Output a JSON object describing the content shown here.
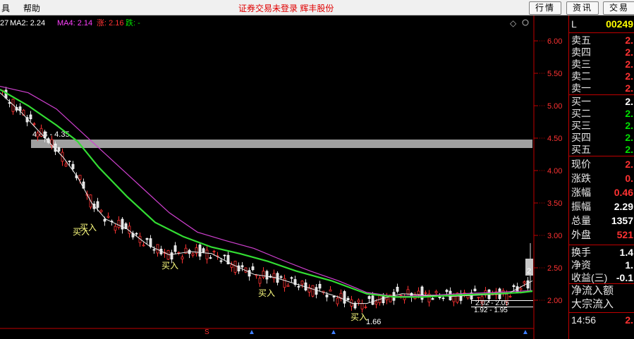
{
  "menu": {
    "left_item": "具",
    "help": "帮助",
    "status": "证券交易未登录  辉丰股份",
    "buttons": [
      "行情",
      "资讯",
      "交易"
    ]
  },
  "chart": {
    "ma_labels": [
      {
        "text": "27",
        "color": "#ffffff"
      },
      {
        "text": "MA2: 2.24",
        "color": "#ffffff"
      },
      {
        "text": "MA4: 2.14",
        "color": "#ff40ff"
      },
      {
        "text": "涨: 2.16",
        "color": "#ff3232"
      },
      {
        "text": "跌: -",
        "color": "#00e000"
      }
    ],
    "price_ticks": [
      "6.00",
      "5.50",
      "5.00",
      "4.50",
      "4.00",
      "3.50",
      "3.00",
      "2.50",
      "2.00"
    ],
    "band_label": "4.48 - 4.35",
    "range_label_1": "2.02 - 2.05",
    "range_label_2": "1.92 - 1.95",
    "low_label": "1.66",
    "side_label": "2",
    "buy_marks": [
      "买入",
      "买入",
      "买入",
      "买入",
      "买入"
    ],
    "series": {
      "ma_green": [
        [
          0,
          5.25
        ],
        [
          40,
          5.0
        ],
        [
          80,
          4.7
        ],
        [
          110,
          4.45
        ],
        [
          140,
          4.05
        ],
        [
          180,
          3.6
        ],
        [
          220,
          3.2
        ],
        [
          260,
          2.98
        ],
        [
          300,
          2.82
        ],
        [
          340,
          2.72
        ],
        [
          380,
          2.6
        ],
        [
          420,
          2.45
        ],
        [
          470,
          2.3
        ],
        [
          520,
          2.1
        ],
        [
          560,
          2.05
        ],
        [
          600,
          2.05
        ],
        [
          650,
          2.08
        ],
        [
          700,
          2.1
        ],
        [
          740,
          2.12
        ],
        [
          755,
          2.14
        ]
      ],
      "ma_magenta": [
        [
          0,
          5.3
        ],
        [
          40,
          5.2
        ],
        [
          80,
          4.95
        ],
        [
          120,
          4.55
        ],
        [
          160,
          4.15
        ],
        [
          200,
          3.75
        ],
        [
          240,
          3.35
        ],
        [
          280,
          3.05
        ],
        [
          320,
          2.92
        ],
        [
          360,
          2.8
        ],
        [
          400,
          2.62
        ],
        [
          440,
          2.45
        ],
        [
          480,
          2.3
        ],
        [
          520,
          2.12
        ],
        [
          560,
          2.06
        ],
        [
          600,
          2.07
        ],
        [
          650,
          2.1
        ],
        [
          700,
          2.12
        ],
        [
          755,
          2.15
        ]
      ],
      "ma_white": [
        [
          0,
          5.2
        ],
        [
          30,
          4.9
        ],
        [
          60,
          4.55
        ],
        [
          90,
          4.2
        ],
        [
          110,
          3.9
        ],
        [
          130,
          3.5
        ],
        [
          150,
          3.25
        ],
        [
          180,
          3.1
        ],
        [
          210,
          2.85
        ],
        [
          240,
          2.7
        ],
        [
          270,
          2.75
        ],
        [
          300,
          2.72
        ],
        [
          330,
          2.55
        ],
        [
          360,
          2.4
        ],
        [
          390,
          2.35
        ],
        [
          420,
          2.25
        ],
        [
          450,
          2.15
        ],
        [
          480,
          2.05
        ],
        [
          500,
          1.95
        ],
        [
          520,
          1.95
        ],
        [
          540,
          2.02
        ],
        [
          570,
          2.1
        ],
        [
          600,
          2.08
        ],
        [
          640,
          2.06
        ],
        [
          680,
          2.08
        ],
        [
          720,
          2.1
        ],
        [
          755,
          2.3
        ]
      ]
    }
  },
  "quote": {
    "code_prefix": "L",
    "code": "00249",
    "asks": [
      {
        "label": "卖五",
        "value": "2."
      },
      {
        "label": "卖四",
        "value": "2."
      },
      {
        "label": "卖三",
        "value": "2."
      },
      {
        "label": "卖二",
        "value": "2."
      },
      {
        "label": "卖一",
        "value": "2."
      }
    ],
    "bids": [
      {
        "label": "买一",
        "value": "2.",
        "color": "white"
      },
      {
        "label": "买二",
        "value": "2.",
        "color": "green"
      },
      {
        "label": "买三",
        "value": "2.",
        "color": "green"
      },
      {
        "label": "买四",
        "value": "2.",
        "color": "green"
      },
      {
        "label": "买五",
        "value": "2.",
        "color": "green"
      }
    ],
    "stats": [
      {
        "label": "现价",
        "value": "2.",
        "color": "red"
      },
      {
        "label": "涨跌",
        "value": "0.",
        "color": "red"
      },
      {
        "label": "涨幅",
        "value": "0.46",
        "color": "red"
      },
      {
        "label": "振幅",
        "value": "2.29",
        "color": "white"
      },
      {
        "label": "总量",
        "value": "1357",
        "color": "white"
      },
      {
        "label": "外盘",
        "value": "521",
        "color": "red"
      }
    ],
    "stats2": [
      {
        "label": "换手",
        "value": "1.4",
        "color": "white"
      },
      {
        "label": "净资",
        "value": "1.",
        "color": "white"
      },
      {
        "label": "收益(三)",
        "value": "-0.1",
        "color": "white"
      }
    ],
    "flows": [
      "净流入额",
      "大宗流入"
    ],
    "time": "14:56",
    "time_value": "2."
  },
  "colors": {
    "up": "#ff3232",
    "down": "#00e000",
    "ma_green": "#33dd33",
    "ma_magenta": "#d040d0",
    "band": "#a0a0a0"
  }
}
